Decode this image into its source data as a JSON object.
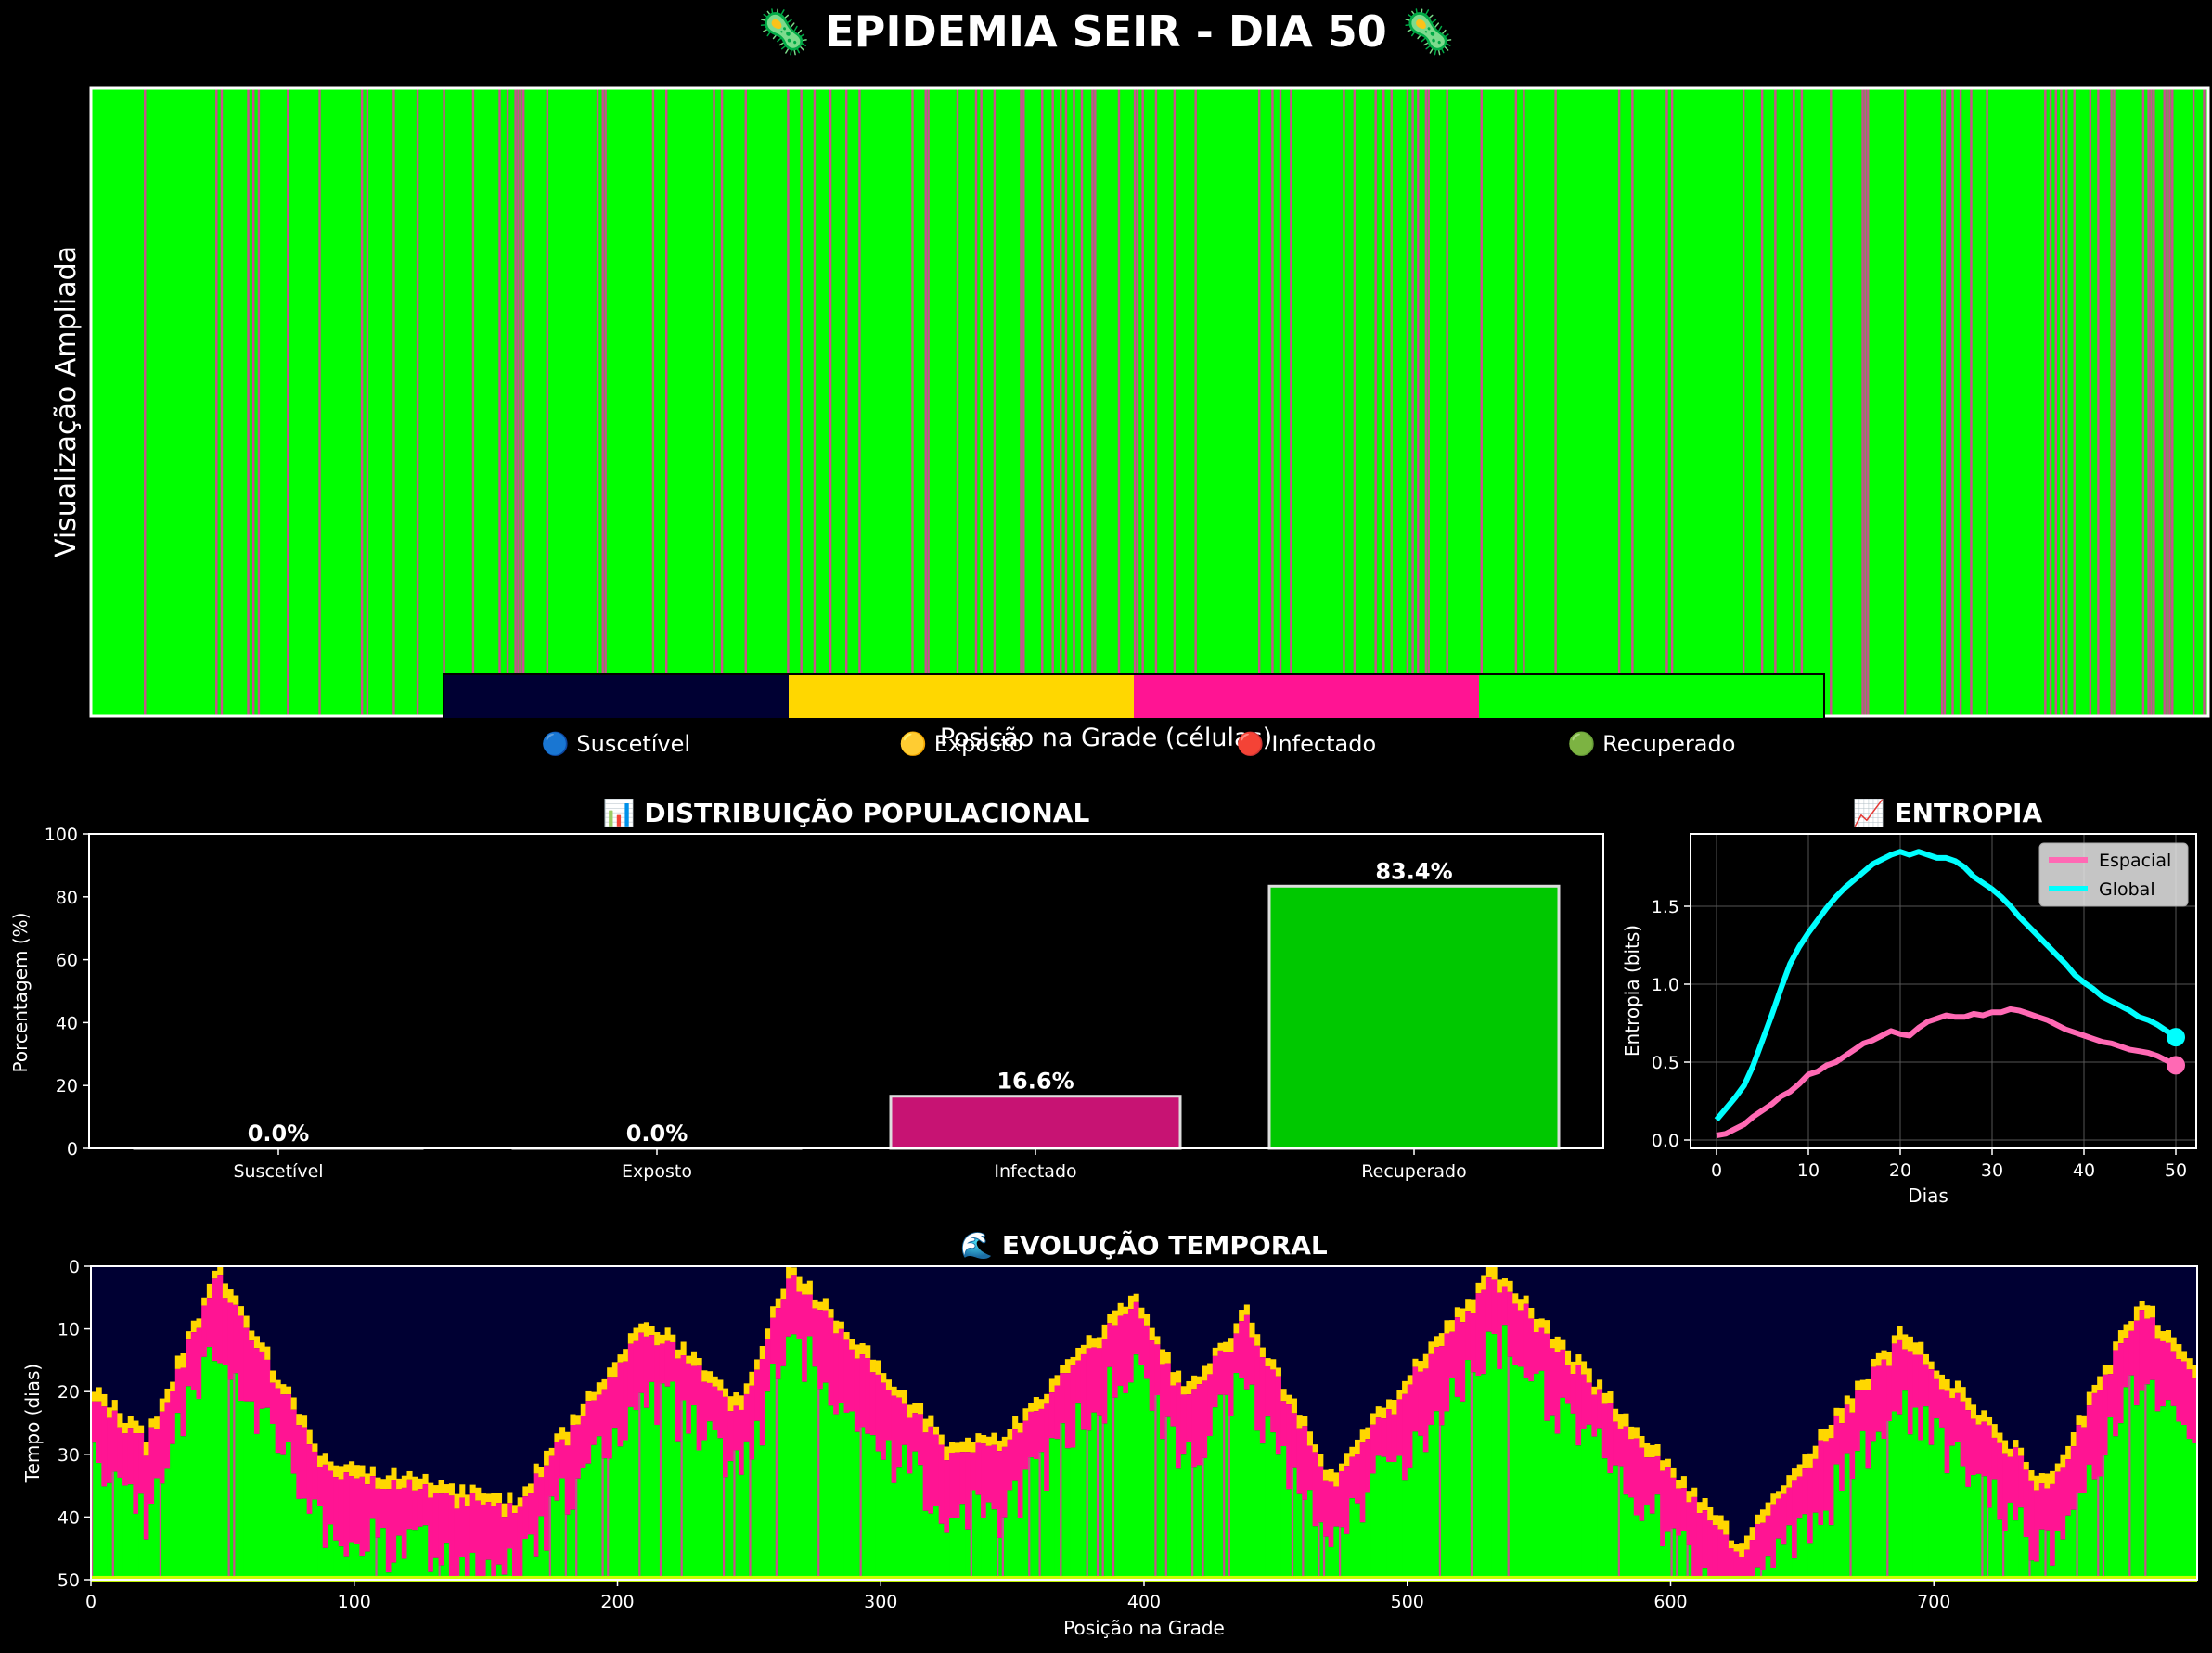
{
  "page_title": "🦠 EPIDEMIA SEIR - DIA 50 🦠",
  "colors": {
    "background": "#000000",
    "susceptible": "#000033",
    "exposed": "#FFD700",
    "infected": "#FF1493",
    "recovered": "#00FF00",
    "entropy_spatial": "#FF69B4",
    "entropy_global": "#00FFFF",
    "bar_infected": "#C71373",
    "bar_recovered": "#00C800"
  },
  "chart_data": [
    {
      "id": "grid",
      "type": "heatmap",
      "title": "",
      "xlabel": "Posição na Grade (células)",
      "ylabel": "Visualização Ampliada",
      "n_cells": 800,
      "infected_fraction": 0.166,
      "legend": {
        "placement": "bottom-center",
        "entries": [
          "🔵 Suscetível",
          "🟡 Exposto",
          "🔴 Infectado",
          "🟢 Recuperado"
        ]
      }
    },
    {
      "id": "distribution",
      "type": "bar",
      "title": "📊 DISTRIBUIÇÃO POPULACIONAL",
      "xlabel": "",
      "ylabel": "Porcentagem (%)",
      "categories": [
        "Suscetível",
        "Exposto",
        "Infectado",
        "Recuperado"
      ],
      "values": [
        0.0,
        0.0,
        16.6,
        83.4
      ],
      "value_labels": [
        "0.0%",
        "0.0%",
        "16.6%",
        "83.4%"
      ],
      "ylim": [
        0,
        100
      ],
      "yticks": [
        "0",
        "20",
        "40",
        "60",
        "80",
        "100"
      ]
    },
    {
      "id": "entropy",
      "type": "line",
      "title": "📈 ENTROPIA",
      "xlabel": "Dias",
      "ylabel": "Entropia (bits)",
      "xlim": [
        0,
        50
      ],
      "ylim": [
        0,
        1.9
      ],
      "xticks": [
        "0",
        "10",
        "20",
        "30",
        "40",
        "50"
      ],
      "yticks": [
        "0.0",
        "0.5",
        "1.0",
        "1.5"
      ],
      "grid": true,
      "legend_placement": "top-right",
      "x": [
        0,
        1,
        2,
        3,
        4,
        5,
        6,
        7,
        8,
        9,
        10,
        11,
        12,
        13,
        14,
        15,
        16,
        17,
        18,
        19,
        20,
        21,
        22,
        23,
        24,
        25,
        26,
        27,
        28,
        29,
        30,
        31,
        32,
        33,
        34,
        35,
        36,
        37,
        38,
        39,
        40,
        41,
        42,
        43,
        44,
        45,
        46,
        47,
        48,
        49,
        50
      ],
      "series": [
        {
          "name": "Espacial",
          "values": [
            0.03,
            0.04,
            0.07,
            0.1,
            0.15,
            0.19,
            0.23,
            0.28,
            0.31,
            0.36,
            0.42,
            0.44,
            0.48,
            0.5,
            0.54,
            0.58,
            0.62,
            0.64,
            0.67,
            0.7,
            0.68,
            0.67,
            0.72,
            0.76,
            0.78,
            0.8,
            0.79,
            0.79,
            0.81,
            0.8,
            0.82,
            0.82,
            0.84,
            0.83,
            0.81,
            0.79,
            0.77,
            0.74,
            0.71,
            0.69,
            0.67,
            0.65,
            0.63,
            0.62,
            0.6,
            0.58,
            0.57,
            0.56,
            0.54,
            0.51,
            0.48
          ]
        },
        {
          "name": "Global",
          "values": [
            0.13,
            0.2,
            0.27,
            0.35,
            0.48,
            0.64,
            0.8,
            0.97,
            1.13,
            1.24,
            1.33,
            1.41,
            1.49,
            1.56,
            1.62,
            1.67,
            1.72,
            1.77,
            1.8,
            1.83,
            1.85,
            1.83,
            1.85,
            1.83,
            1.81,
            1.81,
            1.79,
            1.75,
            1.69,
            1.65,
            1.61,
            1.56,
            1.5,
            1.43,
            1.37,
            1.31,
            1.25,
            1.19,
            1.13,
            1.06,
            1.01,
            0.97,
            0.92,
            0.89,
            0.86,
            0.83,
            0.79,
            0.77,
            0.74,
            0.7,
            0.66
          ]
        }
      ]
    },
    {
      "id": "evolution",
      "type": "heatmap",
      "title": "🌊 EVOLUÇÃO TEMPORAL",
      "xlabel": "Posição na Grade",
      "ylabel": "Tempo (dias)",
      "xlim": [
        0,
        800
      ],
      "ylim": [
        50,
        0
      ],
      "xticks": [
        "0",
        "100",
        "200",
        "300",
        "400",
        "500",
        "600",
        "700"
      ],
      "yticks": [
        "0",
        "10",
        "20",
        "30",
        "40",
        "50"
      ],
      "outbreak_centers": [
        48,
        265,
        396,
        438,
        532,
        687,
        778
      ],
      "troughs": [
        {
          "x": 0,
          "day": 19
        },
        {
          "x": 20,
          "day": 27
        },
        {
          "x": 48,
          "day": 0
        },
        {
          "x": 88,
          "day": 31
        },
        {
          "x": 160,
          "day": 37
        },
        {
          "x": 210,
          "day": 8
        },
        {
          "x": 245,
          "day": 21
        },
        {
          "x": 265,
          "day": 0
        },
        {
          "x": 325,
          "day": 28
        },
        {
          "x": 345,
          "day": 27
        },
        {
          "x": 396,
          "day": 4
        },
        {
          "x": 415,
          "day": 20
        },
        {
          "x": 438,
          "day": 7
        },
        {
          "x": 470,
          "day": 33
        },
        {
          "x": 532,
          "day": 0
        },
        {
          "x": 625,
          "day": 44
        },
        {
          "x": 687,
          "day": 10
        },
        {
          "x": 742,
          "day": 34
        },
        {
          "x": 778,
          "day": 5
        },
        {
          "x": 800,
          "day": 18
        }
      ]
    }
  ]
}
